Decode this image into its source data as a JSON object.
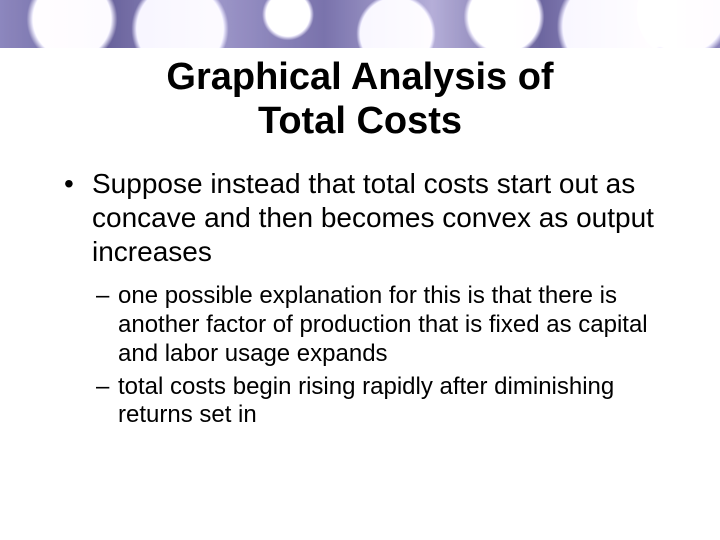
{
  "title_line1": "Graphical Analysis of",
  "title_line2": "Total Costs",
  "bullets": {
    "l1_0": "Suppose instead that total costs start out as concave and then becomes convex as output increases",
    "l2_0": "one possible explanation for this is that there is another factor of production that is fixed as capital and labor usage expands",
    "l2_1": "total costs begin rising rapidly after diminishing returns set in"
  },
  "style": {
    "banner_gradient": "linear-gradient(90deg, #8b86b8, #6b6599, #9a94c2, #7a74a8, #b0aad0, #6e689c, #a49ecc, #8882b4)",
    "title_fontsize": 38,
    "l1_fontsize": 28,
    "l2_fontsize": 24,
    "text_color": "#000000",
    "background_color": "#ffffff"
  }
}
